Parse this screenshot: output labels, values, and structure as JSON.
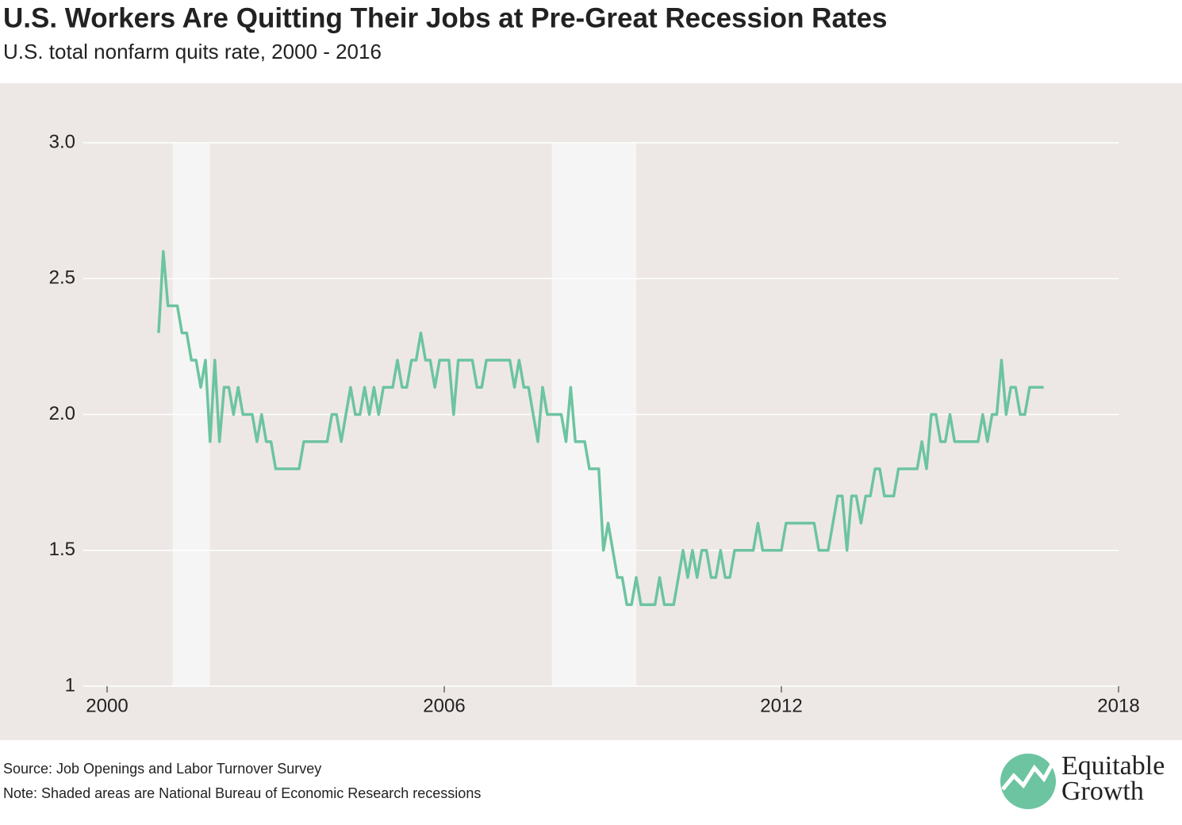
{
  "chart_data": {
    "type": "line",
    "title": "U.S. Workers Are Quitting Their Jobs at Pre-Great Recession Rates",
    "subtitle": "U.S. total nonfarm quits rate, 2000 - 2016",
    "source": "Source: Job Openings and Labor Turnover Survey",
    "note": "Note: Shaded areas are National Bureau of Economic Research recessions",
    "brand": [
      "Equitable",
      "Growth"
    ],
    "xlim": [
      2000,
      2018
    ],
    "xticks": [
      2000,
      2006,
      2012,
      2018
    ],
    "ylim": [
      1,
      3
    ],
    "yticks": [
      1,
      1.5,
      {
        "value": 2,
        "label": "2.0"
      },
      2.5,
      {
        "value": 3,
        "label": "3.0"
      }
    ],
    "grid": true,
    "recessions": [
      [
        2001.167,
        2001.833
      ],
      [
        2007.917,
        2009.417
      ]
    ],
    "x": [
      2000.917,
      2001,
      2001.083,
      2001.167,
      2001.25,
      2001.333,
      2001.417,
      2001.5,
      2001.583,
      2001.667,
      2001.75,
      2001.833,
      2001.917,
      2002,
      2002.083,
      2002.167,
      2002.25,
      2002.333,
      2002.417,
      2002.5,
      2002.583,
      2002.667,
      2002.75,
      2002.833,
      2002.917,
      2003,
      2003.083,
      2003.167,
      2003.25,
      2003.333,
      2003.417,
      2003.5,
      2003.583,
      2003.667,
      2003.75,
      2003.833,
      2003.917,
      2004,
      2004.083,
      2004.167,
      2004.25,
      2004.333,
      2004.417,
      2004.5,
      2004.583,
      2004.667,
      2004.75,
      2004.833,
      2004.917,
      2005,
      2005.083,
      2005.167,
      2005.25,
      2005.333,
      2005.417,
      2005.5,
      2005.583,
      2005.667,
      2005.75,
      2005.833,
      2005.917,
      2006,
      2006.083,
      2006.167,
      2006.25,
      2006.333,
      2006.417,
      2006.5,
      2006.583,
      2006.667,
      2006.75,
      2006.833,
      2006.917,
      2007,
      2007.083,
      2007.167,
      2007.25,
      2007.333,
      2007.417,
      2007.5,
      2007.583,
      2007.667,
      2007.75,
      2007.833,
      2007.917,
      2008,
      2008.083,
      2008.167,
      2008.25,
      2008.333,
      2008.417,
      2008.5,
      2008.583,
      2008.667,
      2008.75,
      2008.833,
      2008.917,
      2009,
      2009.083,
      2009.167,
      2009.25,
      2009.333,
      2009.417,
      2009.5,
      2009.583,
      2009.667,
      2009.75,
      2009.833,
      2009.917,
      2010,
      2010.083,
      2010.167,
      2010.25,
      2010.333,
      2010.417,
      2010.5,
      2010.583,
      2010.667,
      2010.75,
      2010.833,
      2010.917,
      2011,
      2011.083,
      2011.167,
      2011.25,
      2011.333,
      2011.417,
      2011.5,
      2011.583,
      2011.667,
      2011.75,
      2011.833,
      2011.917,
      2012,
      2012.083,
      2012.167,
      2012.25,
      2012.333,
      2012.417,
      2012.5,
      2012.583,
      2012.667,
      2012.75,
      2012.833,
      2012.917,
      2013,
      2013.083,
      2013.167,
      2013.25,
      2013.333,
      2013.417,
      2013.5,
      2013.583,
      2013.667,
      2013.75,
      2013.833,
      2013.917,
      2014,
      2014.083,
      2014.167,
      2014.25,
      2014.333,
      2014.417,
      2014.5,
      2014.583,
      2014.667,
      2014.75,
      2014.833,
      2014.917,
      2015,
      2015.083,
      2015.167,
      2015.25,
      2015.333,
      2015.417,
      2015.5,
      2015.583,
      2015.667,
      2015.75,
      2015.833,
      2015.917,
      2016,
      2016.083,
      2016.167,
      2016.25,
      2016.333,
      2016.417,
      2016.5,
      2016.583,
      2016.667
    ],
    "series": [
      {
        "color": "#6cc4a0",
        "values": [
          2.3,
          2.6,
          2.4,
          2.4,
          2.4,
          2.3,
          2.3,
          2.2,
          2.2,
          2.1,
          2.2,
          1.9,
          2.2,
          1.9,
          2.1,
          2.1,
          2.0,
          2.1,
          2.0,
          2.0,
          2.0,
          1.9,
          2.0,
          1.9,
          1.9,
          1.8,
          1.8,
          1.8,
          1.8,
          1.8,
          1.8,
          1.9,
          1.9,
          1.9,
          1.9,
          1.9,
          1.9,
          2.0,
          2.0,
          1.9,
          2.0,
          2.1,
          2.0,
          2.0,
          2.1,
          2.0,
          2.1,
          2.0,
          2.1,
          2.1,
          2.1,
          2.2,
          2.1,
          2.1,
          2.2,
          2.2,
          2.3,
          2.2,
          2.2,
          2.1,
          2.2,
          2.2,
          2.2,
          2.0,
          2.2,
          2.2,
          2.2,
          2.2,
          2.1,
          2.1,
          2.2,
          2.2,
          2.2,
          2.2,
          2.2,
          2.2,
          2.1,
          2.2,
          2.1,
          2.1,
          2.0,
          1.9,
          2.1,
          2.0,
          2.0,
          2.0,
          2.0,
          1.9,
          2.1,
          1.9,
          1.9,
          1.9,
          1.8,
          1.8,
          1.8,
          1.5,
          1.6,
          1.5,
          1.4,
          1.4,
          1.3,
          1.3,
          1.4,
          1.3,
          1.3,
          1.3,
          1.3,
          1.4,
          1.3,
          1.3,
          1.3,
          1.4,
          1.5,
          1.4,
          1.5,
          1.4,
          1.5,
          1.5,
          1.4,
          1.4,
          1.5,
          1.4,
          1.4,
          1.5,
          1.5,
          1.5,
          1.5,
          1.5,
          1.6,
          1.5,
          1.5,
          1.5,
          1.5,
          1.5,
          1.6,
          1.6,
          1.6,
          1.6,
          1.6,
          1.6,
          1.6,
          1.5,
          1.5,
          1.5,
          1.6,
          1.7,
          1.7,
          1.5,
          1.7,
          1.7,
          1.6,
          1.7,
          1.7,
          1.8,
          1.8,
          1.7,
          1.7,
          1.7,
          1.8,
          1.8,
          1.8,
          1.8,
          1.8,
          1.9,
          1.8,
          2.0,
          2.0,
          1.9,
          1.9,
          2.0,
          1.9,
          1.9,
          1.9,
          1.9,
          1.9,
          1.9,
          2.0,
          1.9,
          2.0,
          2.0,
          2.2,
          2.0,
          2.1,
          2.1,
          2.0,
          2.0,
          2.1,
          2.1,
          2.1,
          2.1
        ]
      }
    ]
  }
}
